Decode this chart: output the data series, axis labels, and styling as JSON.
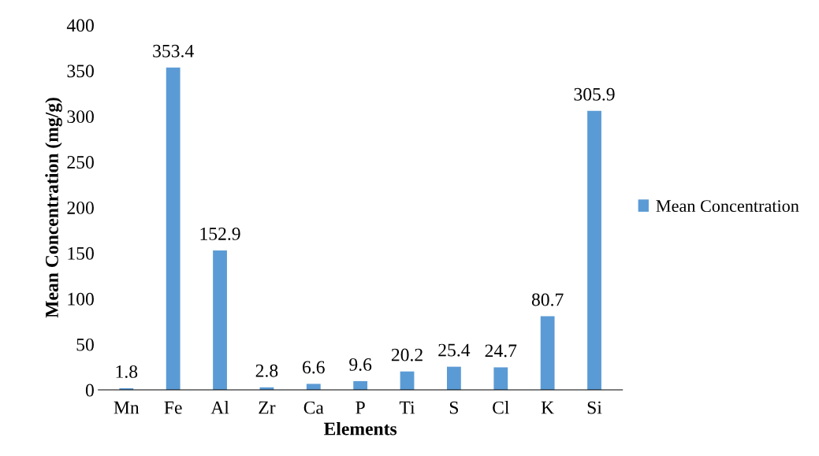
{
  "chart_data": {
    "type": "bar",
    "xlabel": "Elements",
    "ylabel": "Mean Concentration (mg/g)",
    "categories": [
      "Mn",
      "Fe",
      "Al",
      "Zr",
      "Ca",
      "P",
      "Ti",
      "S",
      "Cl",
      "K",
      "Si"
    ],
    "series": [
      {
        "name": "Mean Concentration",
        "color": "#5b9bd5",
        "values": [
          1.8,
          353.4,
          152.9,
          2.8,
          6.6,
          9.6,
          20.2,
          25.4,
          24.7,
          80.7,
          305.9
        ]
      }
    ],
    "ylim": [
      0,
      400
    ],
    "yticks": [
      0,
      50,
      100,
      150,
      200,
      250,
      300,
      350,
      400
    ],
    "data_labels": true,
    "legend": "right",
    "grid": false
  }
}
